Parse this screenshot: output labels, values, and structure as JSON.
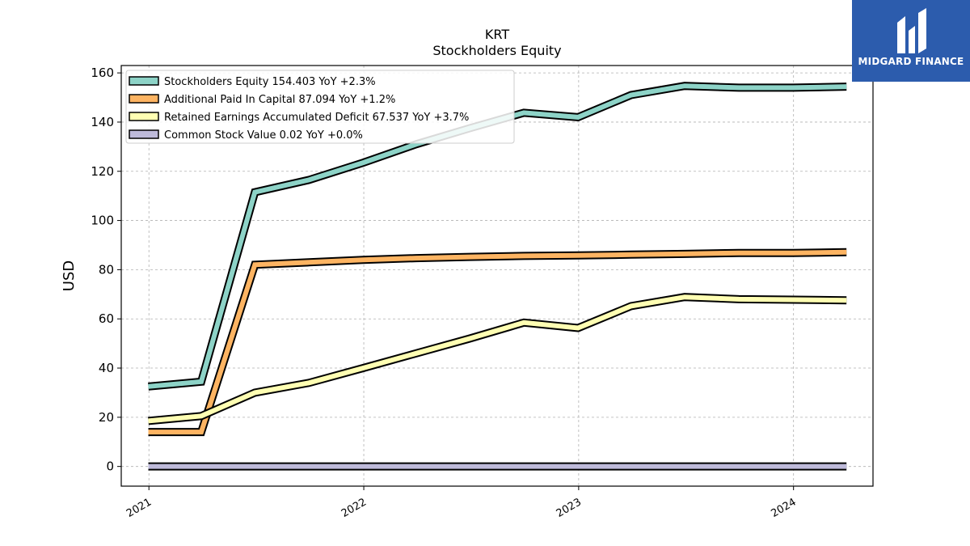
{
  "chart_data": {
    "type": "line",
    "title": "KRT",
    "subtitle": "Stockholders  Equity",
    "ylabel": "USD",
    "xlabel": "",
    "ylim": [
      -8,
      163
    ],
    "yticks": [
      0,
      20,
      40,
      60,
      80,
      100,
      120,
      140,
      160
    ],
    "xticks": [
      "2021",
      "2022",
      "2023",
      "2024"
    ],
    "grid": true,
    "legend_position": "top-left",
    "x": [
      "2020-12-31",
      "2021-03-31",
      "2021-06-30",
      "2021-09-30",
      "2021-12-31",
      "2022-03-31",
      "2022-06-30",
      "2022-09-30",
      "2022-12-31",
      "2023-03-31",
      "2023-06-30",
      "2023-09-30",
      "2023-12-31",
      "2024-03-31"
    ],
    "series": [
      {
        "name": "Stockholders Equity  154.403 YoY +2.3%",
        "color": "#8dd3c7",
        "values": [
          32.5,
          34.5,
          111.5,
          116.5,
          123.5,
          131.0,
          137.5,
          143.8,
          142.0,
          151.0,
          154.7,
          154.0,
          154.0,
          154.403
        ]
      },
      {
        "name": "Additional Paid In Capital  87.094 YoY +1.2%",
        "color": "#fdb462",
        "values": [
          14.0,
          14.0,
          82.0,
          83.0,
          84.0,
          84.7,
          85.2,
          85.6,
          85.8,
          86.1,
          86.4,
          86.8,
          86.8,
          87.094
        ]
      },
      {
        "name": "Retained Earnings Accumulated Deficit  67.537 YoY +3.7%",
        "color": "#ffffb3",
        "values": [
          18.5,
          20.5,
          30.0,
          34.0,
          40.0,
          46.0,
          52.0,
          58.5,
          56.3,
          65.2,
          68.9,
          68.0,
          67.8,
          67.537
        ]
      },
      {
        "name": "Common Stock Value  0.02 YoY +0.0%",
        "color": "#bebada",
        "values": [
          0.02,
          0.02,
          0.02,
          0.02,
          0.02,
          0.02,
          0.02,
          0.02,
          0.02,
          0.02,
          0.02,
          0.02,
          0.02,
          0.02
        ]
      }
    ]
  },
  "logo": {
    "text": "MIDGARD FINANCE",
    "color": "#2c5cad"
  }
}
